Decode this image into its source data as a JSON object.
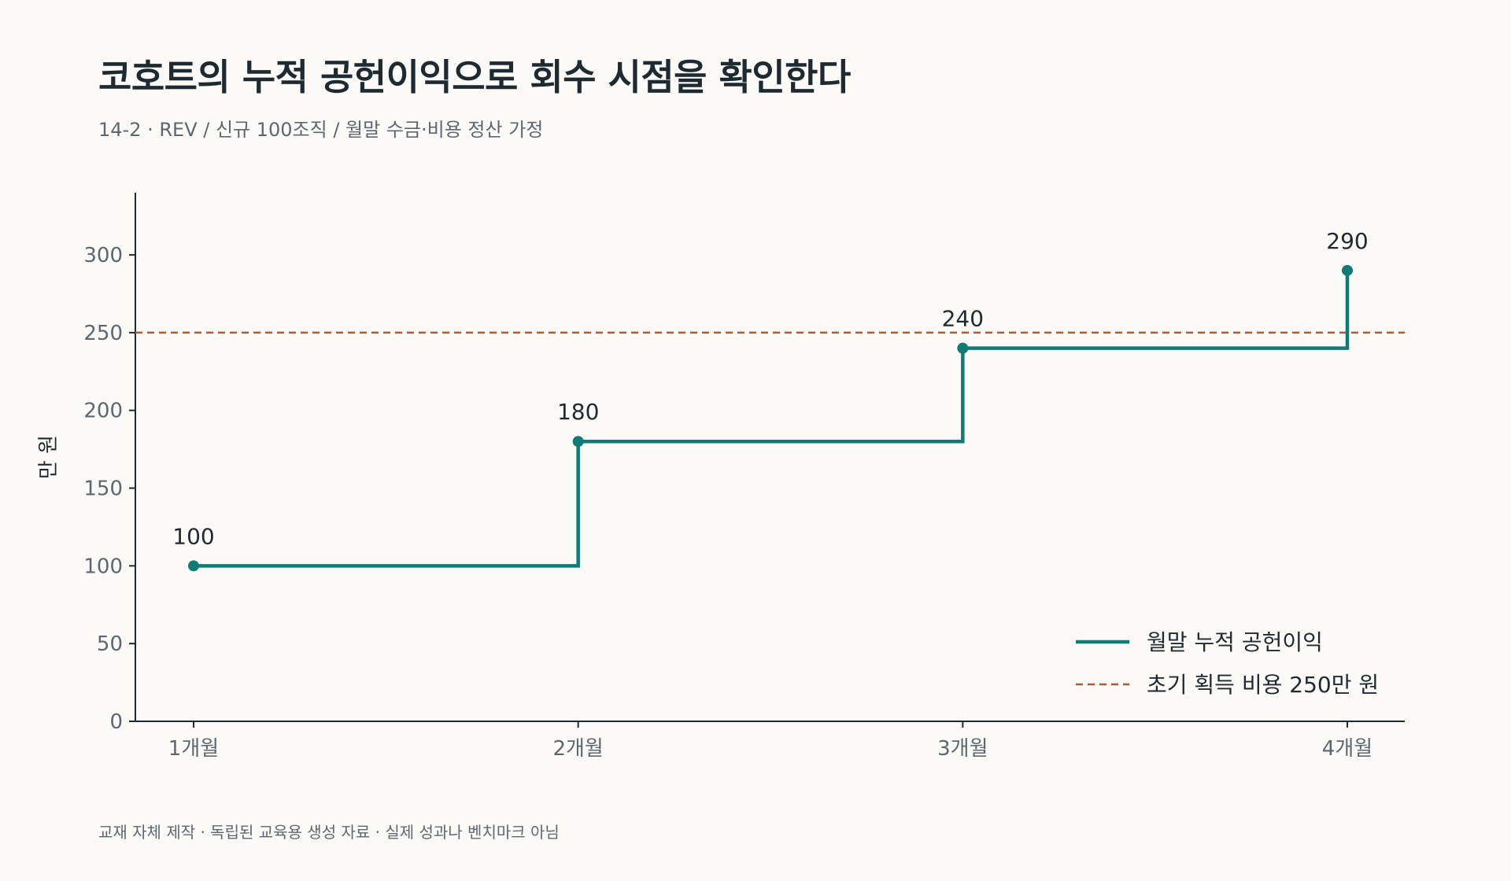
{
  "header": {
    "title": "코호트의 누적 공헌이익으로 회수 시점을 확인한다",
    "subtitle": "14-2 · REV / 신규 100조직 / 월말 수금·비용 정산 가정"
  },
  "footer": {
    "note": "교재 자체 제작 · 독립된 교육용 생성 자료 · 실제 성과나 벤치마크 아님"
  },
  "chart_data": {
    "type": "line",
    "step": "post",
    "categories": [
      "1개월",
      "2개월",
      "3개월",
      "4개월"
    ],
    "series": [
      {
        "name": "월말 누적 공헌이익",
        "values": [
          100,
          180,
          240,
          290
        ],
        "color": "#0f7b75",
        "data_labels": [
          "100",
          "180",
          "240",
          "290"
        ]
      }
    ],
    "reference_line": {
      "name": "초기 획득 비용 250만 원",
      "value": 250,
      "color": "#b8582a",
      "style": "dashed"
    },
    "ylabel": "만 원",
    "xlabel": "",
    "ylim": [
      0,
      340
    ],
    "yticks": [
      0,
      50,
      100,
      150,
      200,
      250,
      300
    ],
    "ytick_labels": [
      "0",
      "50",
      "100",
      "150",
      "200",
      "250",
      "300"
    ],
    "grid": false,
    "legend_position": "bottom-right"
  }
}
